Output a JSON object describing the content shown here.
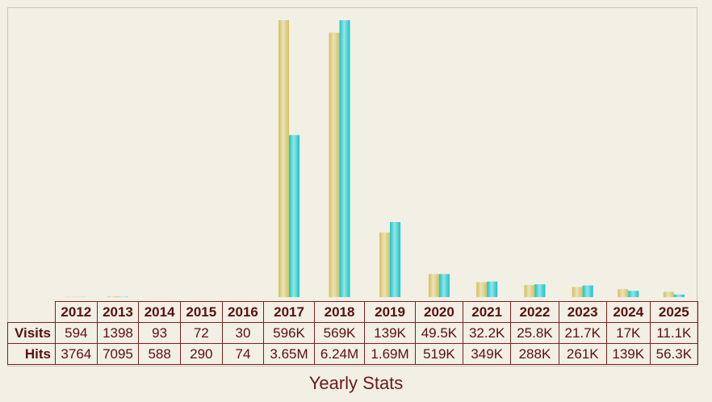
{
  "chart_data": {
    "type": "bar",
    "title": "Yearly Stats",
    "categories": [
      "2012",
      "2013",
      "2014",
      "2015",
      "2016",
      "2017",
      "2018",
      "2019",
      "2020",
      "2021",
      "2022",
      "2023",
      "2024",
      "2025"
    ],
    "series": [
      {
        "name": "Visits",
        "color": "#d2c060",
        "values": [
          594,
          1398,
          93,
          72,
          30,
          596000,
          569000,
          139000,
          49500,
          32200,
          25800,
          21700,
          17000,
          11100
        ],
        "value_labels": [
          "594",
          "1398",
          "93",
          "72",
          "30",
          "596K",
          "569K",
          "139K",
          "49.5K",
          "32.2K",
          "25.8K",
          "21.7K",
          "17K",
          "11.1K"
        ]
      },
      {
        "name": "Hits",
        "color": "#18c4c8",
        "values": [
          3764,
          7095,
          588,
          290,
          74,
          3650000,
          6240000,
          1690000,
          519000,
          349000,
          288000,
          261000,
          139000,
          56300
        ],
        "value_labels": [
          "3764",
          "7095",
          "588",
          "290",
          "74",
          "3.65M",
          "6.24M",
          "1.69M",
          "519K",
          "349K",
          "288K",
          "261K",
          "139K",
          "56.3K"
        ]
      }
    ]
  }
}
